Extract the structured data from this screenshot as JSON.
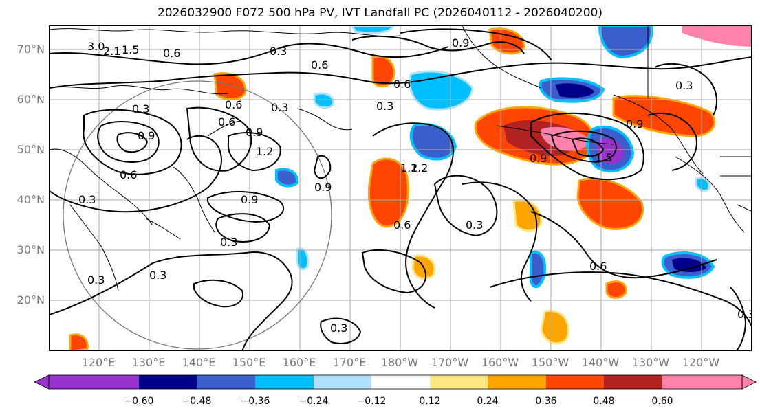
{
  "title": "2026032900 F072 500 hPa PV, IVT Landfall PC (2026040112 - 2026040200)",
  "map": {
    "lat_labels": [
      "70°N",
      "60°N",
      "50°N",
      "40°N",
      "30°N",
      "20°N"
    ],
    "lon_labels": [
      "120°E",
      "130°E",
      "140°E",
      "150°E",
      "160°E",
      "170°E",
      "180°W",
      "170°W",
      "160°W",
      "150°W",
      "140°W",
      "130°W",
      "120°W"
    ],
    "contour_labels": [
      "3.0",
      "2.1",
      "1.5",
      "0.6",
      "0.3",
      "0.9",
      "0.6",
      "0.3",
      "0.9",
      "0.3",
      "0.6",
      "0.9",
      "1.2",
      "0.3",
      "0.9",
      "0.6",
      "0.3",
      "0.3",
      "0.3",
      "0.6",
      "1.2",
      "0.9",
      "0.6",
      "0.3",
      "0.3",
      "0.3",
      "0.6",
      "1.2",
      "0.9",
      "1.5",
      "0.6",
      "0.9",
      "0.3",
      "0.3"
    ]
  },
  "colorbar": {
    "ticks": [
      "−0.60",
      "−0.48",
      "−0.36",
      "−0.24",
      "−0.12",
      "0.12",
      "0.24",
      "0.36",
      "0.48",
      "0.60"
    ],
    "colors": [
      "#9932cc",
      "#00008b",
      "#3a5fcd",
      "#00bfff",
      "#b0e2ff",
      "#ffffff",
      "#ffe785",
      "#ffa500",
      "#ff4500",
      "#b22222",
      "#ff82ab"
    ]
  }
}
